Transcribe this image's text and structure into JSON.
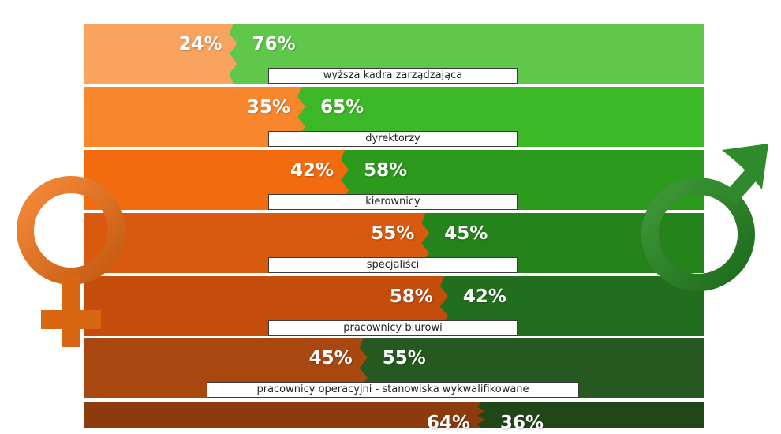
{
  "chart_data": {
    "type": "bar",
    "stacked": true,
    "categories": [
      "wyższa kadra zarządzająca",
      "dyrektorzy",
      "kierownicy",
      "specjaliści",
      "pracownicy biurowi",
      "pracownicy operacyjni - stanowiska wykwalifikowane",
      ""
    ],
    "series": [
      {
        "values": [
          24,
          35,
          42,
          55,
          58,
          45,
          64
        ],
        "value_labels": [
          "24%",
          "35%",
          "42%",
          "55%",
          "58%",
          "45%",
          "64%"
        ]
      },
      {
        "values": [
          76,
          65,
          58,
          45,
          42,
          55,
          36
        ],
        "value_labels": [
          "76%",
          "65%",
          "58%",
          "45%",
          "42%",
          "55%",
          "36%"
        ]
      }
    ],
    "female_colors": [
      "#F8A35E",
      "#F7862C",
      "#F26B0F",
      "#D95A0E",
      "#C54D0C",
      "#A84710",
      "#8B3B0C"
    ],
    "male_colors": [
      "#5FC84B",
      "#3DB828",
      "#2B9A1D",
      "#25831C",
      "#236E1E",
      "#25591F",
      "#1F4718"
    ],
    "icons": [
      "female-symbol-icon",
      "male-symbol-icon"
    ]
  }
}
